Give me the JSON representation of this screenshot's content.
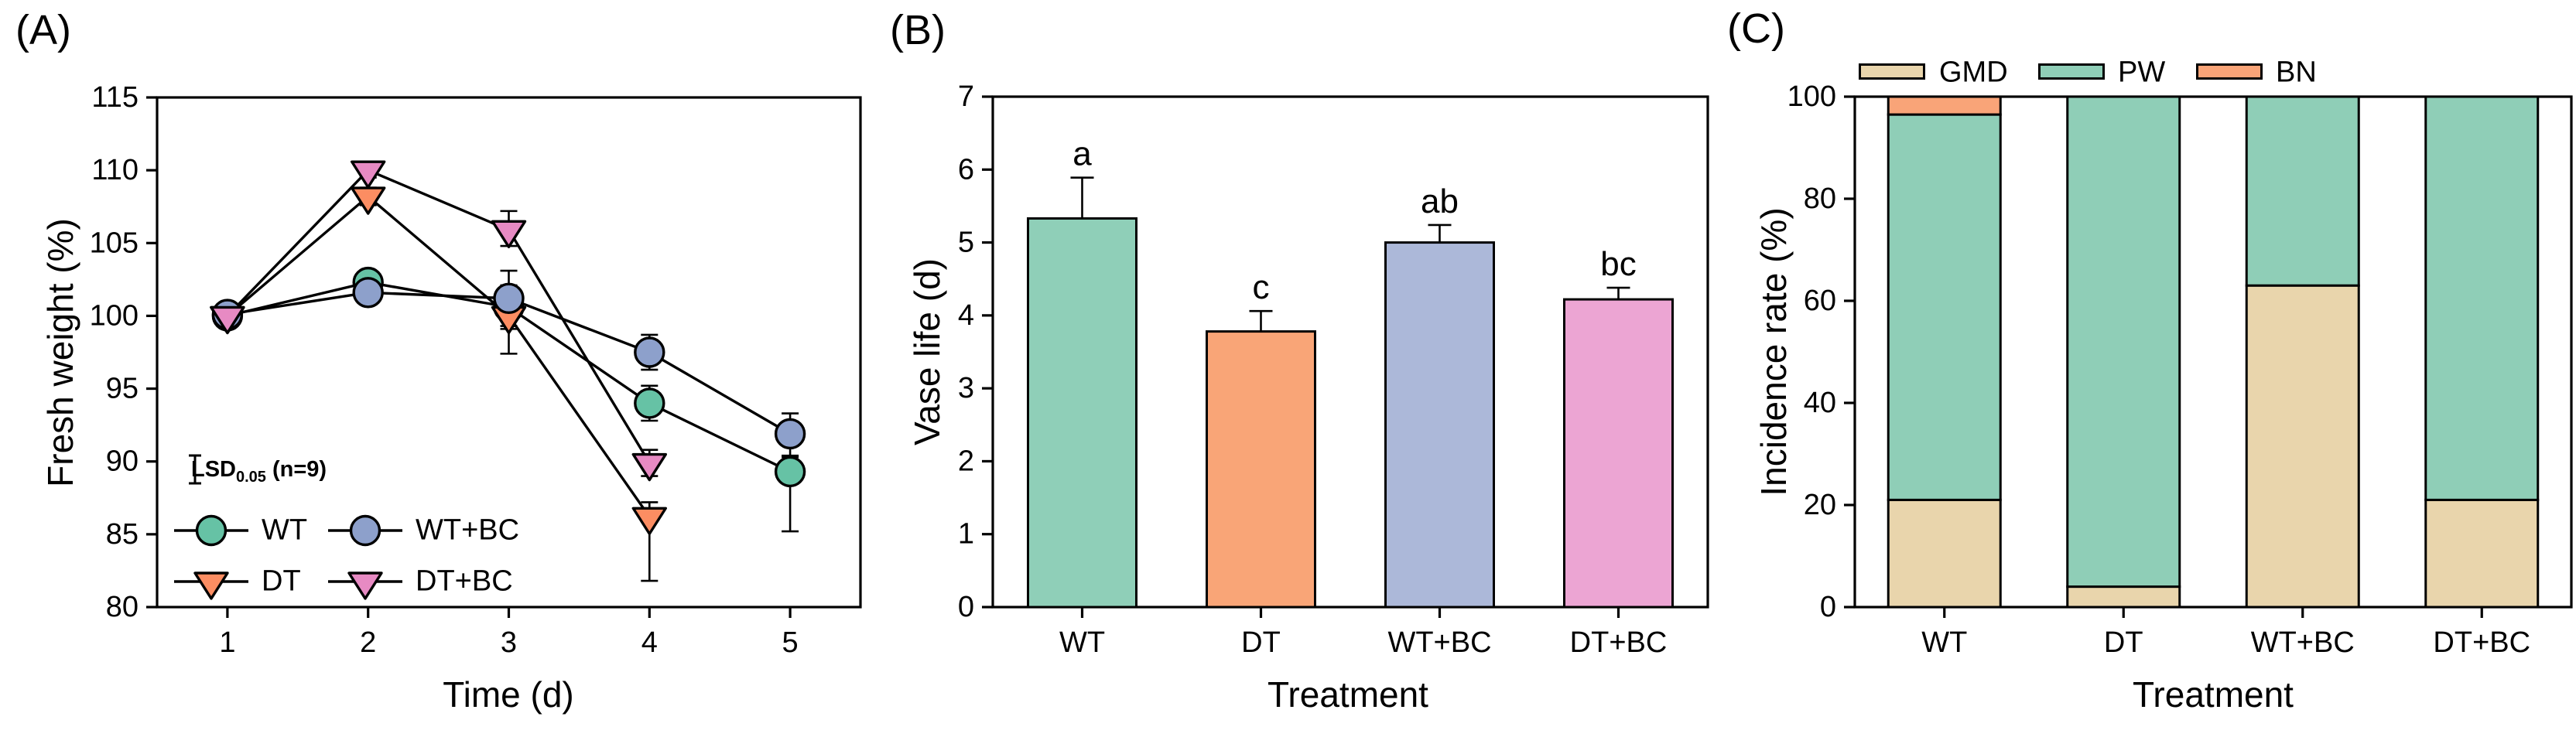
{
  "chart_data": [
    {
      "type": "line",
      "panel_label": "(A)",
      "xlabel": "Time (d)",
      "ylabel": "Fresh weight (%)",
      "x": [
        1,
        2,
        3,
        4,
        5
      ],
      "xlim": [
        0.5,
        5.5
      ],
      "ylim": [
        80,
        115
      ],
      "yticks": [
        80,
        85,
        90,
        95,
        100,
        105,
        110,
        115
      ],
      "xticks": [
        1,
        2,
        3,
        4,
        5
      ],
      "grid": false,
      "legend_position": "inside-bottom-left",
      "series": [
        {
          "name": "WT",
          "marker": "circle",
          "color": "#66C2A5",
          "values": [
            100,
            102.3,
            100.6,
            94.0,
            89.3
          ],
          "err_plus": [
            0.4,
            0.5,
            1.5,
            1.2,
            1.0
          ],
          "err_minus": [
            0.4,
            0.5,
            1.5,
            1.2,
            4.1
          ]
        },
        {
          "name": "DT",
          "marker": "triangle-down",
          "color": "#FC8D62",
          "values": [
            100,
            108.2,
            100.0,
            86.2,
            null
          ],
          "err_plus": [
            0.4,
            0.6,
            0.9,
            1.0,
            null
          ],
          "err_minus": [
            0.4,
            0.6,
            2.6,
            4.4,
            null
          ]
        },
        {
          "name": "WT+BC",
          "marker": "circle",
          "color": "#8DA0CB",
          "values": [
            100.1,
            101.6,
            101.2,
            97.5,
            91.9
          ],
          "err_plus": [
            0.5,
            0.5,
            1.9,
            1.2,
            1.4
          ],
          "err_minus": [
            0.5,
            0.5,
            1.9,
            1.2,
            1.5
          ]
        },
        {
          "name": "DT+BC",
          "marker": "triangle-down",
          "color": "#E78AC3",
          "values": [
            100,
            110.0,
            105.9,
            89.9,
            null
          ],
          "err_plus": [
            0.4,
            0.5,
            1.3,
            0.9,
            null
          ],
          "err_minus": [
            0.4,
            0.5,
            1.1,
            0.9,
            null
          ]
        }
      ],
      "annotation": {
        "icon": "error-bar-icon",
        "label": "LSD",
        "subscript": "0.05",
        "suffix": " (n=9)"
      }
    },
    {
      "type": "bar",
      "panel_label": "(B)",
      "xlabel": "Treatment",
      "ylabel": "Vase life (d)",
      "categories": [
        "WT",
        "DT",
        "WT+BC",
        "DT+BC"
      ],
      "values": [
        5.33,
        3.78,
        5.0,
        4.22
      ],
      "errors": [
        0.56,
        0.28,
        0.24,
        0.16
      ],
      "sig_letters": [
        "a",
        "c",
        "ab",
        "bc"
      ],
      "colors": [
        "#8FCFB8",
        "#F9A577",
        "#ACB8D9",
        "#ECA5D3"
      ],
      "ylim": [
        0,
        7
      ],
      "yticks": [
        0,
        1,
        2,
        3,
        4,
        5,
        6,
        7
      ],
      "grid": false
    },
    {
      "type": "stacked-bar",
      "panel_label": "(C)",
      "xlabel": "Treatment",
      "ylabel": "Incidence rate (%)",
      "categories": [
        "WT",
        "DT",
        "WT+BC",
        "DT+BC"
      ],
      "series": [
        {
          "name": "GMD",
          "color": "#E9D5AC",
          "values": [
            21,
            4,
            63,
            21
          ]
        },
        {
          "name": "PW",
          "color": "#8FCEB7",
          "values": [
            75.5,
            96,
            37,
            79
          ]
        },
        {
          "name": "BN",
          "color": "#F9A478",
          "values": [
            3.5,
            0,
            0,
            0
          ]
        }
      ],
      "ylim": [
        0,
        100
      ],
      "yticks": [
        0,
        20,
        40,
        60,
        80,
        100
      ],
      "grid": false,
      "legend_position": "top"
    }
  ]
}
